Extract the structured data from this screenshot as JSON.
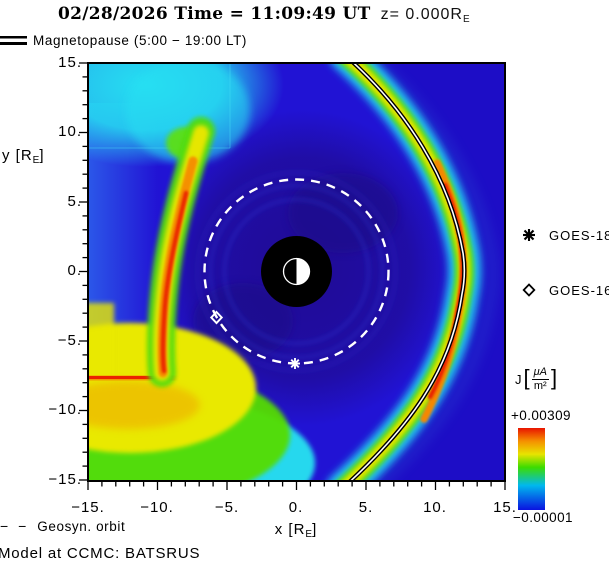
{
  "title": {
    "datetime": "02/28/2026 Time = 11:09:49 UT",
    "z_prefix": "z= 0.000R",
    "z_subscript": "E"
  },
  "legend": {
    "magnetopause": "Magnetopause (5:00 − 19:00 LT)",
    "geosyn_dashes": "− −",
    "geosyn": "Geosyn. orbit",
    "model": "Model at CCMC: BATSRUS"
  },
  "satellites": [
    {
      "name": "GOES-18",
      "symbol": "asterisk",
      "x_re": 0.0,
      "y_re": -6.6
    },
    {
      "name": "GOES-16",
      "symbol": "diamond",
      "x_re": -5.8,
      "y_re": -3.3
    }
  ],
  "axes": {
    "x": {
      "label_pre": "x [R",
      "label_sub": "E",
      "label_post": "]",
      "ticks": [
        "−15.",
        "−10.",
        "−5.",
        "0.",
        "5.",
        "10.",
        "15."
      ],
      "range": [
        -15,
        15
      ]
    },
    "y": {
      "label_pre": "y [R",
      "label_sub": "E",
      "label_post": "]",
      "ticks": [
        "15.",
        "10.",
        "5.",
        "0.",
        "−5.",
        "−10.",
        "−15."
      ],
      "range": [
        -15,
        15
      ]
    }
  },
  "colorbar": {
    "quantity": "J",
    "unit_numerator": "μA",
    "unit_denominator": "m²",
    "max": "+0.00309",
    "min": "−0.00001",
    "stops": [
      "#0a12e0",
      "#00b8ee",
      "#3cdc00",
      "#e8e400",
      "#f59000",
      "#e81400"
    ]
  },
  "colors": {
    "background_blue": "#2113d4",
    "inner_dark_blue": "#200b92",
    "sheath_cyan": "#26dff2",
    "magnetopause_line": [
      "#000000",
      "#ffffff"
    ],
    "orbit_dash": "#ffffff"
  },
  "chart_data": {
    "type": "heatmap",
    "title": "02/28/2026 Time = 11:09:49 UT  z= 0.000 RE",
    "xlabel": "x [RE]",
    "ylabel": "y [RE]",
    "xlim": [
      -15,
      15
    ],
    "ylim": [
      -15,
      15
    ],
    "grid": false,
    "colorbar": {
      "label": "J [μA/m²]",
      "min": -1e-05,
      "max": 0.00309
    },
    "model": "BATSRUS (run at CCMC)",
    "plane": "z = 0.000 RE equatorial cut",
    "magnetopause": {
      "label": "Magnetopause (5:00 − 19:00 LT)",
      "nose_standoff_re": 12.2,
      "sample_points_re": [
        [
          3.5,
          15
        ],
        [
          9.3,
          10
        ],
        [
          11.8,
          5
        ],
        [
          12.2,
          0
        ],
        [
          11.6,
          -5
        ],
        [
          9.0,
          -10
        ],
        [
          3.3,
          -15
        ]
      ]
    },
    "features": {
      "inner_boundary_radius_re": 2.5,
      "earth_radius_re": 1.0,
      "geosynchronous_orbit_radius_re": 6.6,
      "high_current_regions": [
        {
          "name": "dayside magnetopause current layer",
          "description": "rainbow arc peaking red near nose at x ≈ 12 RE"
        },
        {
          "name": "nightside current band",
          "description": "green-yellow-red arc near x ≈ −8 to −10 RE from y ≈ 5 to −15 RE"
        },
        {
          "name": "duskside red streak",
          "description": "red filament at y ≈ −8 RE, x ≤ −9 RE"
        },
        {
          "name": "magnetosheath",
          "description": "cyan region upper-left corner"
        }
      ],
      "satellites": [
        {
          "name": "GOES-18",
          "x_re": 0.0,
          "y_re": -6.6
        },
        {
          "name": "GOES-16",
          "x_re": -5.8,
          "y_re": -3.3
        }
      ]
    }
  }
}
